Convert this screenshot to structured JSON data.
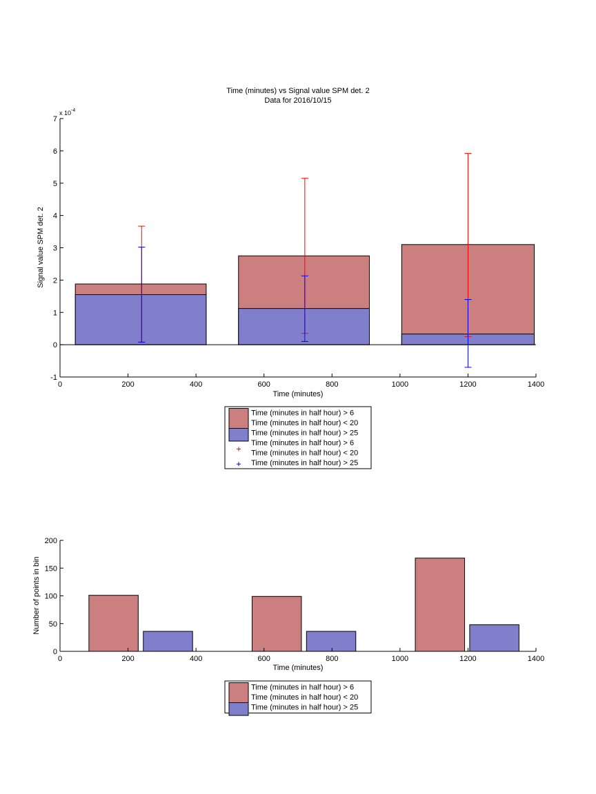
{
  "colors": {
    "red_fill": "#cc7f7f",
    "blue_fill": "#7f7fcc",
    "red_err": "#ff0000",
    "blue_err": "#0000ff",
    "edge": "#000000"
  },
  "chart_data": [
    {
      "type": "bar",
      "title": "Time (minutes) vs Signal value SPM det. 2",
      "subtitle": "Data for 2016/10/15",
      "xlabel": "Time (minutes)",
      "ylabel": "Signal value SPM det. 2",
      "y_multiplier": "x 10",
      "y_exponent": "-4",
      "xlim": [
        0,
        1400
      ],
      "ylim": [
        -1,
        7
      ],
      "xticks": [
        0,
        200,
        400,
        600,
        800,
        1000,
        1200,
        1400
      ],
      "yticks": [
        -1,
        0,
        1,
        2,
        3,
        4,
        5,
        6,
        7
      ],
      "bars": [
        {
          "x_start": 45,
          "x_end": 430,
          "red": 1.88,
          "blue": 1.55
        },
        {
          "x_start": 525,
          "x_end": 910,
          "red": 2.75,
          "blue": 1.12
        },
        {
          "x_start": 1005,
          "x_end": 1395,
          "red": 3.1,
          "blue": 0.33
        }
      ],
      "series": [
        {
          "name": "Time (minutes in half hour) > 6\nTime (minutes in half hour) < 20",
          "color": "red",
          "errorbars": [
            {
              "x": 240,
              "lower": 0.08,
              "upper": 3.67
            },
            {
              "x": 720,
              "lower": 0.35,
              "upper": 5.15
            },
            {
              "x": 1200,
              "lower": 0.25,
              "upper": 5.92
            }
          ]
        },
        {
          "name": "Time (minutes in half hour) > 25",
          "color": "blue",
          "errorbars": [
            {
              "x": 240,
              "lower": 0.08,
              "upper": 3.02
            },
            {
              "x": 720,
              "lower": 0.1,
              "upper": 2.13
            },
            {
              "x": 1200,
              "lower": -0.7,
              "upper": 1.4
            }
          ]
        }
      ],
      "legend": {
        "placement": "below",
        "entries": [
          {
            "kind": "patch",
            "color": "red",
            "lines": [
              "Time (minutes in half hour) > 6",
              "Time (minutes in half hour) < 20"
            ]
          },
          {
            "kind": "patch",
            "color": "blue",
            "lines": [
              "Time (minutes in half hour) > 25"
            ]
          },
          {
            "kind": "marker",
            "color": "red",
            "lines": [
              "Time (minutes in half hour) > 6",
              "Time (minutes in half hour) < 20"
            ]
          },
          {
            "kind": "marker",
            "color": "blue",
            "lines": [
              "Time (minutes in half hour) > 25"
            ]
          }
        ]
      }
    },
    {
      "type": "bar",
      "xlabel": "Time (minutes)",
      "ylabel": "Number of points in bin",
      "xlim": [
        0,
        1400
      ],
      "ylim": [
        0,
        200
      ],
      "xticks": [
        0,
        200,
        400,
        600,
        800,
        1000,
        1200,
        1400
      ],
      "yticks": [
        0,
        50,
        100,
        150,
        200
      ],
      "bars": [
        {
          "x_start": 85,
          "x_end": 230,
          "value": 101,
          "color": "red"
        },
        {
          "x_start": 245,
          "x_end": 390,
          "value": 36,
          "color": "blue"
        },
        {
          "x_start": 565,
          "x_end": 710,
          "value": 99,
          "color": "red"
        },
        {
          "x_start": 725,
          "x_end": 870,
          "value": 36,
          "color": "blue"
        },
        {
          "x_start": 1045,
          "x_end": 1190,
          "value": 168,
          "color": "red"
        },
        {
          "x_start": 1205,
          "x_end": 1350,
          "value": 48,
          "color": "blue"
        }
      ],
      "legend": {
        "placement": "below",
        "entries": [
          {
            "kind": "patch",
            "color": "red",
            "lines": [
              "Time (minutes in half hour) > 6",
              "Time (minutes in half hour) < 20"
            ]
          },
          {
            "kind": "patch",
            "color": "blue",
            "lines": [
              "Time (minutes in half hour) > 25"
            ]
          }
        ]
      }
    }
  ]
}
